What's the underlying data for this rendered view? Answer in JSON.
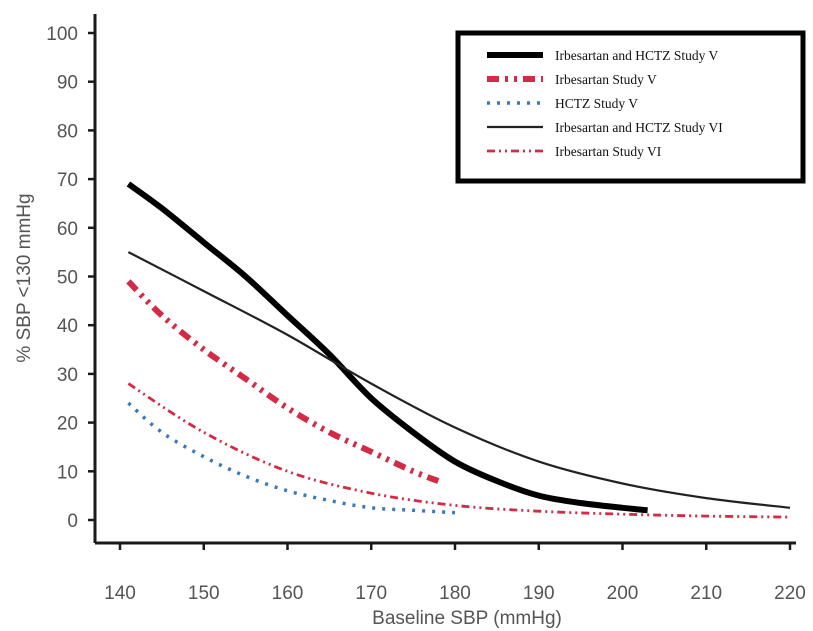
{
  "chart_data": {
    "type": "line",
    "title": "",
    "xlabel": "Baseline SBP (mmHg)",
    "ylabel": "% SBP <130 mmHg",
    "xlim": [
      140,
      220
    ],
    "ylim": [
      0,
      100
    ],
    "xticks": [
      140,
      150,
      160,
      170,
      180,
      190,
      200,
      210,
      220
    ],
    "yticks": [
      0,
      10,
      20,
      30,
      40,
      50,
      60,
      70,
      80,
      90,
      100
    ],
    "grid": false,
    "legend_position": "top-right",
    "series": [
      {
        "name": "Irbesartan and HCTZ Study V",
        "color": "#000000",
        "style": "thick-solid",
        "x": [
          141,
          145,
          150,
          155,
          160,
          165,
          170,
          175,
          180,
          185,
          190,
          195,
          200,
          203
        ],
        "y": [
          69,
          64,
          57,
          50,
          42,
          34,
          25,
          18,
          12,
          8,
          5,
          3.5,
          2.5,
          2
        ]
      },
      {
        "name": "Irbesartan Study V",
        "color": "#d42a45",
        "style": "dash-dot",
        "x": [
          141,
          145,
          150,
          155,
          160,
          165,
          170,
          175,
          178
        ],
        "y": [
          49,
          42,
          35,
          29,
          23,
          18,
          14,
          10,
          8
        ]
      },
      {
        "name": "HCTZ Study V",
        "color": "#3a79b8",
        "style": "dotted",
        "x": [
          141,
          145,
          150,
          155,
          160,
          165,
          170,
          175,
          180
        ],
        "y": [
          24,
          18,
          13,
          9,
          6,
          4,
          2.5,
          2,
          1.5
        ]
      },
      {
        "name": "Irbesartan and HCTZ Study VI",
        "color": "#222222",
        "style": "thin-solid",
        "x": [
          141,
          150,
          160,
          170,
          180,
          190,
          200,
          210,
          220
        ],
        "y": [
          55,
          47,
          38,
          28,
          19,
          12,
          7.5,
          4.5,
          2.5
        ]
      },
      {
        "name": "Irbesartan Study VI",
        "color": "#d42a45",
        "style": "dash-dot-dot",
        "x": [
          141,
          150,
          160,
          170,
          180,
          190,
          200,
          210,
          220
        ],
        "y": [
          28,
          18,
          10,
          5.5,
          3,
          1.8,
          1.2,
          0.8,
          0.6
        ]
      }
    ]
  }
}
